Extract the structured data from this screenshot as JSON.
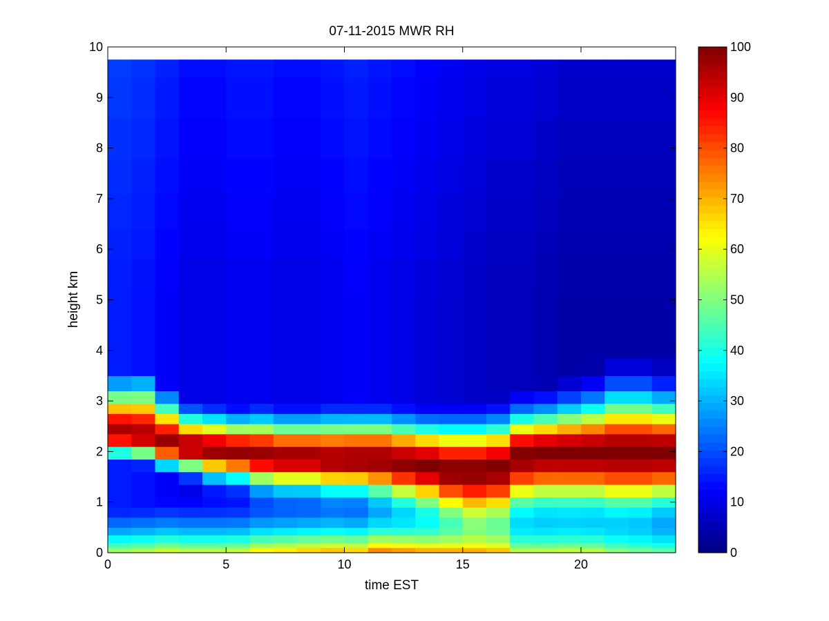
{
  "chart_data": {
    "type": "heatmap",
    "title": "07-11-2015 MWR RH",
    "xlabel": "time EST",
    "ylabel": "height km",
    "xlim": [
      0,
      24
    ],
    "ylim": [
      0,
      10
    ],
    "x_ticks": [
      0,
      5,
      10,
      15,
      20
    ],
    "y_ticks": [
      0,
      1,
      2,
      3,
      4,
      5,
      6,
      7,
      8,
      9,
      10
    ],
    "x_start": 0,
    "x_step": 1,
    "x_count": 24,
    "y_top": 9.75,
    "colormap": "jet",
    "colorbar": {
      "range": [
        0,
        100
      ],
      "ticks": [
        0,
        10,
        20,
        30,
        40,
        50,
        60,
        70,
        80,
        90,
        100
      ]
    },
    "heights": [
      0.0,
      0.1,
      0.2,
      0.35,
      0.5,
      0.7,
      0.9,
      1.1,
      1.35,
      1.6,
      1.85,
      2.1,
      2.35,
      2.55,
      2.75,
      2.95,
      3.2,
      3.5,
      3.85,
      4.25,
      4.7,
      5.2,
      5.8,
      6.4,
      7.1,
      7.8,
      8.6,
      9.4
    ],
    "rh_profiles": [
      {
        "time": 0,
        "h1": 2.25,
        "s1": 0.3,
        "s2": 0.6,
        "pk": 97,
        "surf": 52,
        "mid": 15
      },
      {
        "time": 1,
        "h1": 2.2,
        "s1": 0.3,
        "s2": 0.65,
        "pk": 97,
        "surf": 54,
        "mid": 14
      },
      {
        "time": 2,
        "h1": 2.05,
        "s1": 0.3,
        "s2": 0.55,
        "pk": 98,
        "surf": 57,
        "mid": 12
      },
      {
        "time": 3,
        "h1": 1.95,
        "s1": 0.3,
        "s2": 0.45,
        "pk": 98,
        "surf": 55,
        "mid": 10
      },
      {
        "time": 4,
        "h1": 1.9,
        "s1": 0.35,
        "s2": 0.45,
        "pk": 98,
        "surf": 55,
        "mid": 10
      },
      {
        "time": 5,
        "h1": 1.85,
        "s1": 0.35,
        "s2": 0.45,
        "pk": 98,
        "surf": 56,
        "mid": 11
      },
      {
        "time": 6,
        "h1": 1.8,
        "s1": 0.4,
        "s2": 0.5,
        "pk": 98,
        "surf": 62,
        "mid": 11
      },
      {
        "time": 7,
        "h1": 1.75,
        "s1": 0.4,
        "s2": 0.5,
        "pk": 98,
        "surf": 64,
        "mid": 10
      },
      {
        "time": 8,
        "h1": 1.75,
        "s1": 0.4,
        "s2": 0.5,
        "pk": 98,
        "surf": 66,
        "mid": 10
      },
      {
        "time": 9,
        "h1": 1.7,
        "s1": 0.4,
        "s2": 0.55,
        "pk": 98,
        "surf": 68,
        "mid": 11
      },
      {
        "time": 10,
        "h1": 1.7,
        "s1": 0.4,
        "s2": 0.55,
        "pk": 99,
        "surf": 66,
        "mid": 12
      },
      {
        "time": 11,
        "h1": 1.7,
        "s1": 0.45,
        "s2": 0.55,
        "pk": 99,
        "surf": 74,
        "mid": 11
      },
      {
        "time": 12,
        "h1": 1.65,
        "s1": 0.5,
        "s2": 0.55,
        "pk": 99,
        "surf": 72,
        "mid": 10
      },
      {
        "time": 13,
        "h1": 1.6,
        "s1": 0.55,
        "s2": 0.55,
        "pk": 100,
        "surf": 70,
        "mid": 9
      },
      {
        "time": 14,
        "h1": 1.5,
        "s1": 0.6,
        "s2": 0.6,
        "pk": 100,
        "surf": 70,
        "mid": 8
      },
      {
        "time": 15,
        "h1": 1.5,
        "s1": 0.7,
        "s2": 0.6,
        "pk": 100,
        "surf": 70,
        "mid": 7
      },
      {
        "time": 16,
        "h1": 1.55,
        "s1": 0.7,
        "s2": 0.6,
        "pk": 100,
        "surf": 68,
        "mid": 6
      },
      {
        "time": 17,
        "h1": 1.8,
        "s1": 0.7,
        "s2": 0.55,
        "pk": 100,
        "surf": 55,
        "mid": 6
      },
      {
        "time": 18,
        "h1": 1.85,
        "s1": 0.7,
        "s2": 0.55,
        "pk": 100,
        "surf": 55,
        "mid": 5
      },
      {
        "time": 19,
        "h1": 1.85,
        "s1": 0.7,
        "s2": 0.6,
        "pk": 100,
        "surf": 56,
        "mid": 4
      },
      {
        "time": 20,
        "h1": 1.85,
        "s1": 0.7,
        "s2": 0.65,
        "pk": 100,
        "surf": 55,
        "mid": 4
      },
      {
        "time": 21,
        "h1": 1.85,
        "s1": 0.75,
        "s2": 0.75,
        "pk": 100,
        "surf": 50,
        "mid": 4
      },
      {
        "time": 22,
        "h1": 1.85,
        "s1": 0.75,
        "s2": 0.75,
        "pk": 100,
        "surf": 48,
        "mid": 4
      },
      {
        "time": 23,
        "h1": 1.85,
        "s1": 0.7,
        "s2": 0.7,
        "pk": 100,
        "surf": 46,
        "mid": 4
      }
    ]
  }
}
